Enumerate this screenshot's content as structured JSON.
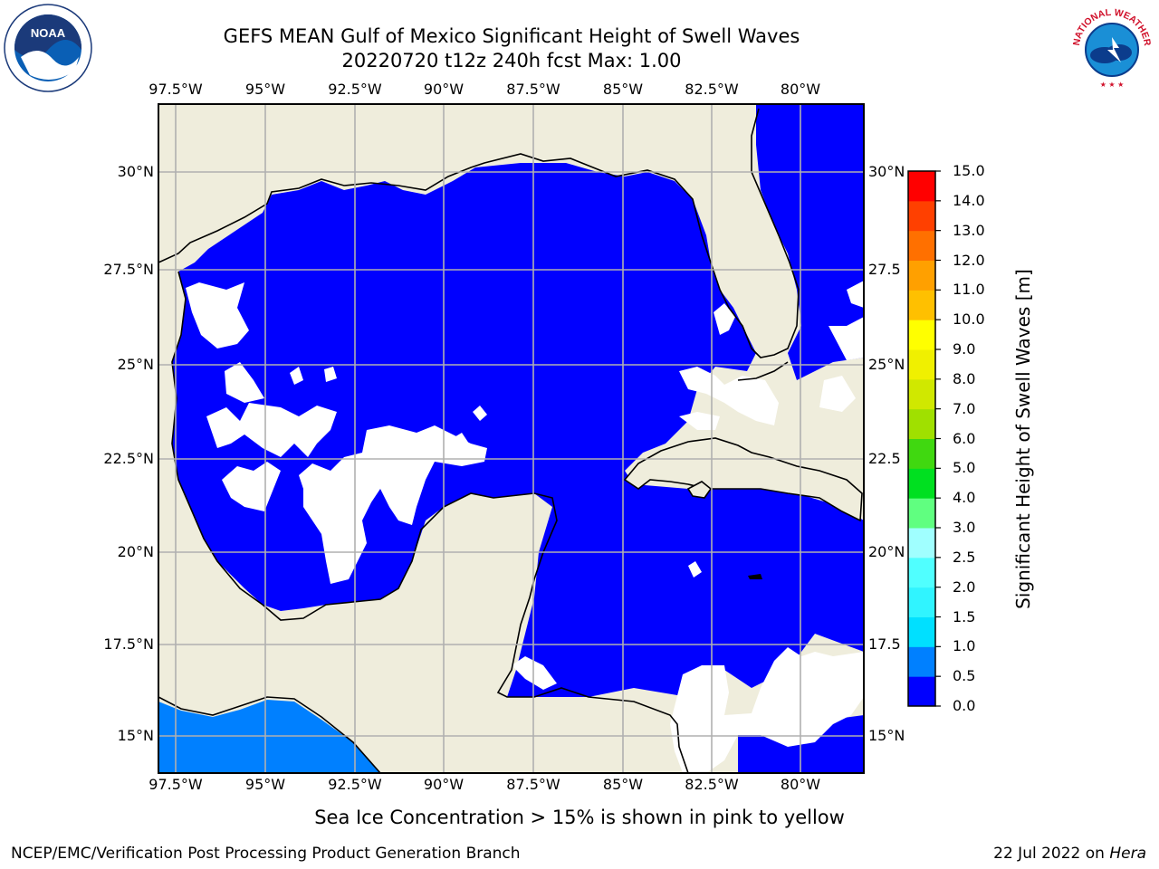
{
  "title_line1": "GEFS MEAN Gulf of Mexico Significant Height of Swell Waves",
  "title_line2": "20220720 t12z 240h fcst   Max: 1.00",
  "longitude_ticks": [
    "97.5°W",
    "95°W",
    "92.5°W",
    "90°W",
    "87.5°W",
    "85°W",
    "82.5°W",
    "80°W"
  ],
  "latitude_ticks": [
    "30°N",
    "27.5°N",
    "25°N",
    "22.5°N",
    "20°N",
    "17.5°N",
    "15°N"
  ],
  "latitude_ticks_right": [
    "30°N",
    "27.5",
    "25°N",
    "22.5",
    "20°N",
    "17.5",
    "15°N"
  ],
  "colorbar": {
    "label": "Significant Height of Swell Waves [m]",
    "ticks": [
      "0.0",
      "0.5",
      "1.0",
      "1.5",
      "2.0",
      "2.5",
      "3.0",
      "4.0",
      "5.0",
      "6.0",
      "7.0",
      "8.0",
      "9.0",
      "10.0",
      "11.0",
      "12.0",
      "13.0",
      "14.0",
      "15.0"
    ],
    "colors": [
      "#0000ff",
      "#0080ff",
      "#00e0ff",
      "#30f4ff",
      "#50ffff",
      "#a0ffff",
      "#60ff80",
      "#00e020",
      "#40d810",
      "#a0e000",
      "#d0e800",
      "#f0f000",
      "#ffff00",
      "#ffc000",
      "#ffa000",
      "#ff7000",
      "#ff4000",
      "#ff0000"
    ]
  },
  "note": "Sea Ice Concentration > 15% is shown in pink to yellow",
  "footer_left": "NCEP/EMC/Verification Post Processing Product Generation Branch",
  "footer_date": "22 Jul 2022 on",
  "footer_host": "Hera",
  "logos": {
    "left": "NOAA",
    "right": "NATIONAL WEATHER SERVICE"
  },
  "colors": {
    "land": "#efeddc",
    "ocean_low": "#0000ff",
    "ocean_mid": "#0080ff",
    "grid": "#b0b0b0"
  }
}
